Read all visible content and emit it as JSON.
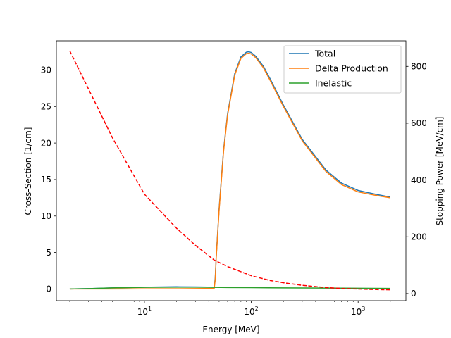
{
  "chart_data": {
    "type": "line",
    "title": "",
    "xlabel": "Energy [MeV]",
    "ylabel": "Cross-Section [1/cm]",
    "y2label": "Stopping Power [MeV/cm]",
    "xscale": "log",
    "xlim": [
      1.5,
      2800
    ],
    "ylim": [
      -1.6,
      34
    ],
    "y2lim": [
      -25,
      890
    ],
    "x_ticks": [
      {
        "value": 10,
        "base": "10",
        "exp": "1"
      },
      {
        "value": 100,
        "base": "10",
        "exp": "2"
      },
      {
        "value": 1000,
        "base": "10",
        "exp": "3"
      }
    ],
    "y_ticks": [
      {
        "value": 0,
        "label": "0"
      },
      {
        "value": 5,
        "label": "5"
      },
      {
        "value": 10,
        "label": "10"
      },
      {
        "value": 15,
        "label": "15"
      },
      {
        "value": 20,
        "label": "20"
      },
      {
        "value": 25,
        "label": "25"
      },
      {
        "value": 30,
        "label": "30"
      }
    ],
    "y2_ticks": [
      {
        "value": 0,
        "label": "0"
      },
      {
        "value": 200,
        "label": "200"
      },
      {
        "value": 400,
        "label": "400"
      },
      {
        "value": 600,
        "label": "600"
      },
      {
        "value": 800,
        "label": "800"
      }
    ],
    "legend_position": "top-right",
    "grid": false,
    "series": [
      {
        "name": "Total",
        "axis": "left",
        "color": "#1f77b4",
        "style": "solid",
        "x": [
          2,
          3,
          5,
          10,
          20,
          30,
          45,
          46,
          47,
          50,
          55,
          60,
          70,
          80,
          90,
          95,
          100,
          110,
          130,
          150,
          200,
          300,
          500,
          700,
          1000,
          1500,
          2000
        ],
        "y": [
          0.0,
          0.05,
          0.15,
          0.25,
          0.3,
          0.28,
          0.25,
          1.5,
          4.5,
          11.0,
          19.0,
          24.0,
          29.5,
          31.8,
          32.45,
          32.5,
          32.4,
          31.9,
          30.5,
          28.8,
          25.2,
          20.5,
          16.3,
          14.5,
          13.5,
          12.95,
          12.6
        ]
      },
      {
        "name": "Delta Production",
        "axis": "left",
        "color": "#ff7f0e",
        "style": "solid",
        "x": [
          2,
          3,
          5,
          10,
          20,
          30,
          45,
          46,
          47,
          50,
          55,
          60,
          70,
          80,
          90,
          95,
          100,
          110,
          130,
          150,
          200,
          300,
          500,
          700,
          1000,
          1500,
          2000
        ],
        "y": [
          0.0,
          0.0,
          0.0,
          0.01,
          0.03,
          0.05,
          0.08,
          1.3,
          4.3,
          10.8,
          18.8,
          23.8,
          29.3,
          31.6,
          32.25,
          32.3,
          32.2,
          31.7,
          30.3,
          28.6,
          25.0,
          20.3,
          16.1,
          14.3,
          13.3,
          12.8,
          12.5
        ]
      },
      {
        "name": "Inelastic",
        "axis": "left",
        "color": "#2ca02c",
        "style": "solid",
        "x": [
          2,
          3,
          5,
          10,
          20,
          30,
          45,
          60,
          100,
          200,
          500,
          1000,
          2000
        ],
        "y": [
          0.0,
          0.05,
          0.15,
          0.22,
          0.25,
          0.25,
          0.22,
          0.2,
          0.18,
          0.15,
          0.12,
          0.1,
          0.08
        ]
      },
      {
        "axis": "right",
        "color": "#ff0000",
        "style": "dashed",
        "x": [
          2,
          3,
          5,
          10,
          20,
          30,
          45,
          60,
          100,
          150,
          200,
          300,
          500,
          700,
          1000,
          1500,
          2000
        ],
        "y": [
          855,
          720,
          550,
          350,
          230,
          170,
          118,
          95,
          63,
          46,
          38,
          29,
          21,
          18,
          16,
          14,
          13
        ]
      }
    ]
  }
}
